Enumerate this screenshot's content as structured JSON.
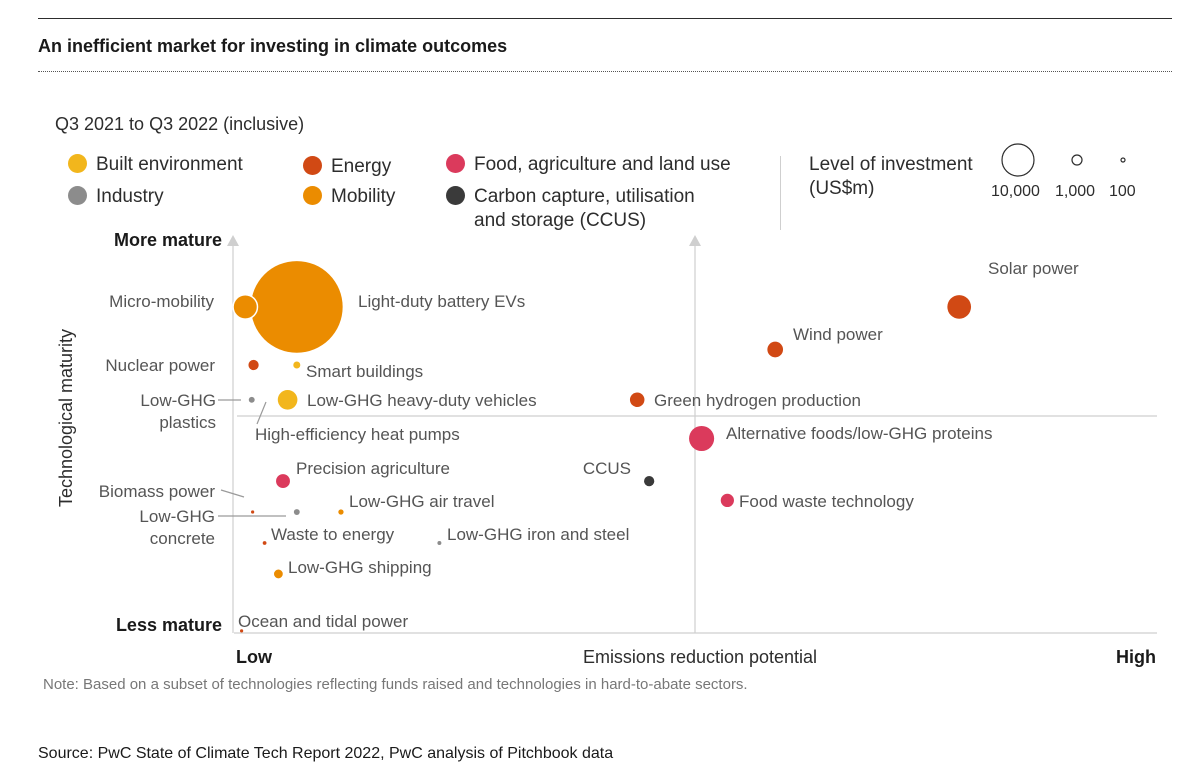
{
  "title": "An inefficient market for investing in climate outcomes",
  "subtitle": "Q3 2021 to Q3 2022 (inclusive)",
  "legend": [
    {
      "label": "Built environment",
      "color": "#F2B61C"
    },
    {
      "label": "Industry",
      "color": "#8C8C8C"
    },
    {
      "label": "Energy",
      "color": "#D14914"
    },
    {
      "label": "Mobility",
      "color": "#EB8C00"
    },
    {
      "label": "Food, agriculture and land use",
      "color": "#DB3A5C"
    },
    {
      "label": "Carbon capture, utilisation\nand storage (CCUS)",
      "color": "#3A3A3A"
    }
  ],
  "size_legend": {
    "title": "Level of investment\n(US$m)",
    "items": [
      {
        "label": "10,000",
        "value": 10000
      },
      {
        "label": "1,000",
        "value": 1000
      },
      {
        "label": "100",
        "value": 100
      }
    ]
  },
  "note": "Note: Based on a subset of technologies reflecting funds raised and technologies in hard-to-abate sectors.",
  "source": "Source: PwC State of Climate Tech Report 2022, PwC analysis of Pitchbook data",
  "chart_data": {
    "type": "scatter",
    "xlabel": "Emissions reduction potential",
    "ylabel": "Technological maturity",
    "x_low_label": "Low",
    "x_high_label": "High",
    "y_high_label": "More mature",
    "y_low_label": "Less mature",
    "xlim": [
      0,
      100
    ],
    "ylim": [
      0,
      100
    ],
    "points": [
      {
        "label": "Light-duty battery EVs",
        "category": "Mobility",
        "x": 6.5,
        "y": 84,
        "size": 24000
      },
      {
        "label": "Micro-mobility",
        "category": "Mobility",
        "x": 0.9,
        "y": 84,
        "size": 1700
      },
      {
        "label": "Nuclear power",
        "category": "Energy",
        "x": 1.8,
        "y": 69,
        "size": 300
      },
      {
        "label": "Smart buildings",
        "category": "Built environment",
        "x": 6.5,
        "y": 69,
        "size": 140
      },
      {
        "label": "Low-GHG\nplastics",
        "category": "Industry",
        "x": 1.6,
        "y": 60,
        "size": 100
      },
      {
        "label": "Low-GHG heavy-duty vehicles",
        "category": "Built environment",
        "x": 5.5,
        "y": 60,
        "size": 1100
      },
      {
        "label": "High-efficiency heat pumps",
        "category": "Built environment",
        "x": 3.0,
        "y": 56,
        "size": 0
      },
      {
        "label": "Solar power",
        "category": "Energy",
        "x": 78.5,
        "y": 84,
        "size": 1600
      },
      {
        "label": "Wind power",
        "category": "Energy",
        "x": 58.5,
        "y": 73,
        "size": 700
      },
      {
        "label": "Green hydrogen production",
        "category": "Energy",
        "x": 43.5,
        "y": 60,
        "size": 600
      },
      {
        "label": "Alternative foods/low-GHG proteins",
        "category": "Food, agriculture and land use",
        "x": 50.5,
        "y": 50,
        "size": 1800
      },
      {
        "label": "CCUS",
        "category": "Carbon capture, utilisation and storage (CCUS)",
        "x": 44.8,
        "y": 39,
        "size": 300
      },
      {
        "label": "Food waste technology",
        "category": "Food, agriculture and land use",
        "x": 53.3,
        "y": 34,
        "size": 500
      },
      {
        "label": "Precision agriculture",
        "category": "Food, agriculture and land use",
        "x": 5.0,
        "y": 39,
        "size": 550
      },
      {
        "label": "Biomass power",
        "category": "Energy",
        "x": 1.7,
        "y": 31,
        "size": 5
      },
      {
        "label": "Low-GHG\nconcrete",
        "category": "Industry",
        "x": 6.5,
        "y": 31,
        "size": 100
      },
      {
        "label": "Low-GHG air travel",
        "category": "Mobility",
        "x": 11.3,
        "y": 31,
        "size": 80
      },
      {
        "label": "Waste to energy",
        "category": "Energy",
        "x": 3.0,
        "y": 23,
        "size": 40
      },
      {
        "label": "Low-GHG iron and steel",
        "category": "Industry",
        "x": 22.0,
        "y": 23,
        "size": 45
      },
      {
        "label": "Low-GHG shipping",
        "category": "Mobility",
        "x": 4.5,
        "y": 15,
        "size": 220
      },
      {
        "label": "Ocean and tidal power",
        "category": "Energy",
        "x": 0.5,
        "y": 0.3,
        "size": 3
      }
    ]
  }
}
